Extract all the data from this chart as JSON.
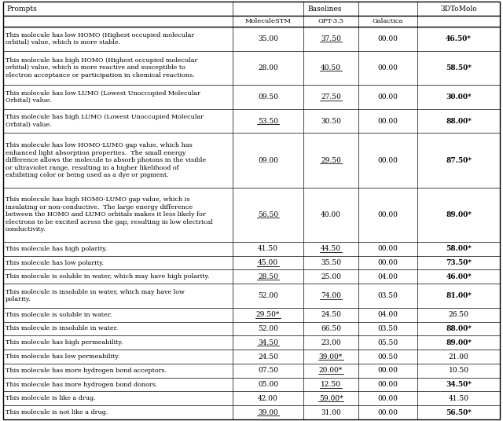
{
  "col_headers": [
    "Prompts",
    "MoleculeSTM",
    "GPT-3.5",
    "Galactica",
    "3DToMolo"
  ],
  "baselines_header": "Baselines",
  "rows": [
    {
      "prompt": "This molecule has low HOMO (Highest occupied molecular\norbital) value, which is more stable.",
      "prompt_lines": 2,
      "moleculeSTM": "35.00",
      "moleculeSTM_underline": false,
      "gpt35": "37.50",
      "gpt35_underline": true,
      "galactica": "00.00",
      "3dtomolo": "46.50*",
      "3dtomolo_bold": true
    },
    {
      "prompt": "This molecule has high HOMO (Highest occupied molecular\norbital) value, which is more reactive and susceptible to\nelectron acceptance or participation in chemical reactions.",
      "prompt_lines": 3,
      "moleculeSTM": "28.00",
      "moleculeSTM_underline": false,
      "gpt35": "40.50",
      "gpt35_underline": true,
      "galactica": "00.00",
      "3dtomolo": "58.50*",
      "3dtomolo_bold": true
    },
    {
      "prompt": "This molecule has low LUMO (Lowest Unoccupied Molecular\nOrbital) value.",
      "prompt_lines": 2,
      "moleculeSTM": "09.50",
      "moleculeSTM_underline": false,
      "gpt35": "27.50",
      "gpt35_underline": true,
      "galactica": "00.00",
      "3dtomolo": "30.00*",
      "3dtomolo_bold": true
    },
    {
      "prompt": "This molecule has high LUMO (Lowest Unoccupied Molecular\nOrbital) value.",
      "prompt_lines": 2,
      "moleculeSTM": "53.50",
      "moleculeSTM_underline": true,
      "gpt35": "30.50",
      "gpt35_underline": false,
      "galactica": "00.00",
      "3dtomolo": "88.00*",
      "3dtomolo_bold": true
    },
    {
      "prompt": "This molecule has low HOMO-LUMO gap value, which has\nenhanced light absorption properties.  The small energy\ndifference allows the molecule to absorb photons in the visible\nor ultraviolet range, resulting in a higher likelihood of\nexhibiting color or being used as a dye or pigment.",
      "prompt_lines": 5,
      "moleculeSTM": "09.00",
      "moleculeSTM_underline": false,
      "gpt35": "29.50",
      "gpt35_underline": true,
      "galactica": "00.00",
      "3dtomolo": "87.50*",
      "3dtomolo_bold": true
    },
    {
      "prompt": "This molecule has high HOMO-LUMO gap value, which is\ninsulating or non-conductive.  The large energy difference\nbetween the HOMO and LUMO orbitals makes it less likely for\nelectrons to be excited across the gap, resulting in low electrical\nconductivity.",
      "prompt_lines": 5,
      "moleculeSTM": "56.50",
      "moleculeSTM_underline": true,
      "gpt35": "40.00",
      "gpt35_underline": false,
      "galactica": "00.00",
      "3dtomolo": "89.00*",
      "3dtomolo_bold": true
    },
    {
      "prompt": "This molecule has high polarity.",
      "prompt_lines": 1,
      "moleculeSTM": "41.50",
      "moleculeSTM_underline": false,
      "gpt35": "44.50",
      "gpt35_underline": true,
      "galactica": "00.00",
      "3dtomolo": "58.00*",
      "3dtomolo_bold": true
    },
    {
      "prompt": "This molecule has low polarity.",
      "prompt_lines": 1,
      "moleculeSTM": "45.00",
      "moleculeSTM_underline": true,
      "gpt35": "35.50",
      "gpt35_underline": false,
      "galactica": "00.00",
      "3dtomolo": "73.50*",
      "3dtomolo_bold": true
    },
    {
      "prompt": "This molecule is soluble in water, which may have high polarity.",
      "prompt_lines": 1,
      "moleculeSTM": "28.50",
      "moleculeSTM_underline": true,
      "gpt35": "25.00",
      "gpt35_underline": false,
      "galactica": "04.00",
      "3dtomolo": "46.00*",
      "3dtomolo_bold": true
    },
    {
      "prompt": "This molecule is insoluble in water, which may have low\npolarity.",
      "prompt_lines": 2,
      "moleculeSTM": "52.00",
      "moleculeSTM_underline": false,
      "gpt35": "74.00",
      "gpt35_underline": true,
      "galactica": "03.50",
      "3dtomolo": "81.00*",
      "3dtomolo_bold": true
    },
    {
      "prompt": "This molecule is soluble in water.",
      "prompt_lines": 1,
      "moleculeSTM": "29.50*",
      "moleculeSTM_underline": true,
      "gpt35": "24.50",
      "gpt35_underline": false,
      "galactica": "04.00",
      "3dtomolo": "26.50",
      "3dtomolo_bold": false
    },
    {
      "prompt": "This molecule is insoluble in water.",
      "prompt_lines": 1,
      "moleculeSTM": "52.00",
      "moleculeSTM_underline": false,
      "gpt35": "66.50",
      "gpt35_underline": false,
      "galactica": "03.50",
      "3dtomolo": "88.00*",
      "3dtomolo_bold": true
    },
    {
      "prompt": "This molecule has high permeability.",
      "prompt_lines": 1,
      "moleculeSTM": "34.50",
      "moleculeSTM_underline": true,
      "gpt35": "23.00",
      "gpt35_underline": false,
      "galactica": "05.50",
      "3dtomolo": "89.00*",
      "3dtomolo_bold": true
    },
    {
      "prompt": "This molecule has low permeability.",
      "prompt_lines": 1,
      "moleculeSTM": "24.50",
      "moleculeSTM_underline": false,
      "gpt35": "39.00*",
      "gpt35_underline": true,
      "galactica": "00.50",
      "3dtomolo": "21.00",
      "3dtomolo_bold": false
    },
    {
      "prompt": "This molecule has more hydrogen bond acceptors.",
      "prompt_lines": 1,
      "moleculeSTM": "07.50",
      "moleculeSTM_underline": false,
      "gpt35": "20.00*",
      "gpt35_underline": true,
      "galactica": "00.00",
      "3dtomolo": "10.50",
      "3dtomolo_bold": false
    },
    {
      "prompt": "This molecule has more hydrogen bond donors.",
      "prompt_lines": 1,
      "moleculeSTM": "05.00",
      "moleculeSTM_underline": false,
      "gpt35": "12.50",
      "gpt35_underline": true,
      "galactica": "00.00",
      "3dtomolo": "34.50*",
      "3dtomolo_bold": true
    },
    {
      "prompt": "This molecule is like a drug.",
      "prompt_lines": 1,
      "moleculeSTM": "42.00",
      "moleculeSTM_underline": false,
      "gpt35": "59.00*",
      "gpt35_underline": true,
      "galactica": "00.00",
      "3dtomolo": "41.50",
      "3dtomolo_bold": false
    },
    {
      "prompt": "This molecule is not like a drug.",
      "prompt_lines": 1,
      "moleculeSTM": "39.00",
      "moleculeSTM_underline": true,
      "gpt35": "31.00",
      "gpt35_underline": false,
      "galactica": "00.00",
      "3dtomolo": "56.50*",
      "3dtomolo_bold": true
    }
  ],
  "fig_width": 6.4,
  "fig_height": 5.36,
  "dpi": 100
}
